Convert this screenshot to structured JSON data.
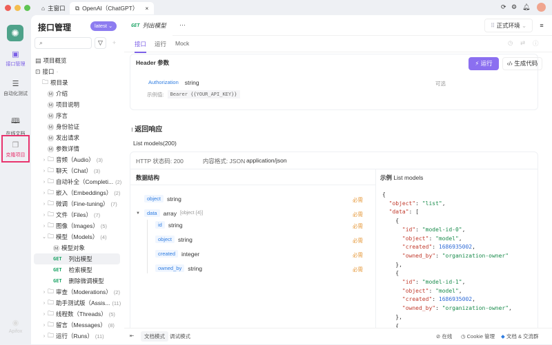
{
  "window": {
    "tabs": [
      {
        "label": "主窗口",
        "icon": "home-icon"
      },
      {
        "label": "OpenAI（ChatGPT）",
        "icon": "link-icon"
      }
    ]
  },
  "rail": {
    "items": [
      {
        "label": "接口管理",
        "icon": "api-icon",
        "active": true
      },
      {
        "label": "自动化测试",
        "icon": "layers-icon"
      },
      {
        "label": "在线文档",
        "icon": "book-icon"
      },
      {
        "label": "克隆项目",
        "icon": "copy-icon",
        "highlighted": true
      }
    ],
    "footer": "Apifox"
  },
  "sidebar": {
    "title": "接口管理",
    "version": "latest",
    "search_placeholder": "",
    "overview": "项目概览",
    "api_root": "接口",
    "root_folder": "根目录",
    "docs": [
      "介绍",
      "项目说明",
      "序言",
      "身份验证",
      "发出请求",
      "参数详情"
    ],
    "folders_before": [
      {
        "label": "音频（Audio）",
        "count": "(3)"
      },
      {
        "label": "聊天（Chat）",
        "count": "(3)"
      },
      {
        "label": "自动补全（Completi...",
        "count": "(2)"
      },
      {
        "label": "嵌入（Embeddings）",
        "count": "(2)"
      },
      {
        "label": "微调（Fine-tuning）",
        "count": "(7)"
      },
      {
        "label": "文件（Files）",
        "count": "(7)"
      },
      {
        "label": "图像（Images）",
        "count": "(5)"
      }
    ],
    "open_folder": {
      "label": "模型（Models）",
      "count": "(4)",
      "children": [
        {
          "type": "doc",
          "label": "模型对象"
        },
        {
          "method": "GET",
          "label": "列出模型",
          "selected": true
        },
        {
          "method": "GET",
          "label": "检索模型"
        },
        {
          "method": "GET",
          "label": "删除微调模型"
        }
      ]
    },
    "folders_after": [
      {
        "label": "审查（Moderations）",
        "count": "(2)"
      },
      {
        "label": "助手测试版（Assis...",
        "count": "(11)"
      },
      {
        "label": "线程数（Threads）",
        "count": "(5)"
      },
      {
        "label": "留言（Messages）",
        "count": "(8)"
      },
      {
        "label": "运行（Runs）",
        "count": "(11)"
      }
    ]
  },
  "main": {
    "tab": {
      "method": "GET",
      "title": "列出模型",
      "more": "···"
    },
    "environment": "正式环境",
    "subtabs": [
      "接口",
      "运行",
      "Mock"
    ],
    "header_params": {
      "title": "Header 参数",
      "run": "运行",
      "gen_code": "生成代码",
      "name": "Authorization",
      "type": "string",
      "optional": "可选",
      "example_label": "示例值:",
      "example": "Bearer {{YOUR_API_KEY}}"
    },
    "response": {
      "title": "返回响应",
      "tab": "List models(200)",
      "status_label": "HTTP 状态码: 200",
      "format_label": "内容格式: JSON",
      "content_type": "application/json",
      "schema_title": "数据结构",
      "example_title": "示例",
      "example_name": "List models",
      "fields": [
        {
          "name": "object",
          "type": "string",
          "req": "必需"
        },
        {
          "name": "data",
          "type": "array",
          "extra": "[object {4}]",
          "req": "必需"
        },
        {
          "name": "id",
          "type": "string",
          "req": "必需"
        },
        {
          "name": "object",
          "type": "string",
          "req": "必需"
        },
        {
          "name": "created",
          "type": "integer",
          "req": "必需"
        },
        {
          "name": "owned_by",
          "type": "string",
          "req": "必需"
        }
      ],
      "json": [
        "{",
        "  \"object\": \"list\",",
        "  \"data\": [",
        "    {",
        "      \"id\": \"model-id-0\",",
        "      \"object\": \"model\",",
        "      \"created\": 1686935002,",
        "      \"owned_by\": \"organization-owner\"",
        "    },",
        "    {",
        "      \"id\": \"model-id-1\",",
        "      \"object\": \"model\",",
        "      \"created\": 1686935002,",
        "      \"owned_by\": \"organization-owner\",",
        "    },",
        "    {"
      ]
    }
  },
  "footer": {
    "doc_mode": "文档模式",
    "debug_mode": "调试模式",
    "online": "在线",
    "cookie": "Cookie 管理",
    "community": "文档 & 交流群"
  },
  "colors": {
    "accent": "#7b5fe6",
    "highlight_box": "#e8336d",
    "get": "#1aa364"
  }
}
